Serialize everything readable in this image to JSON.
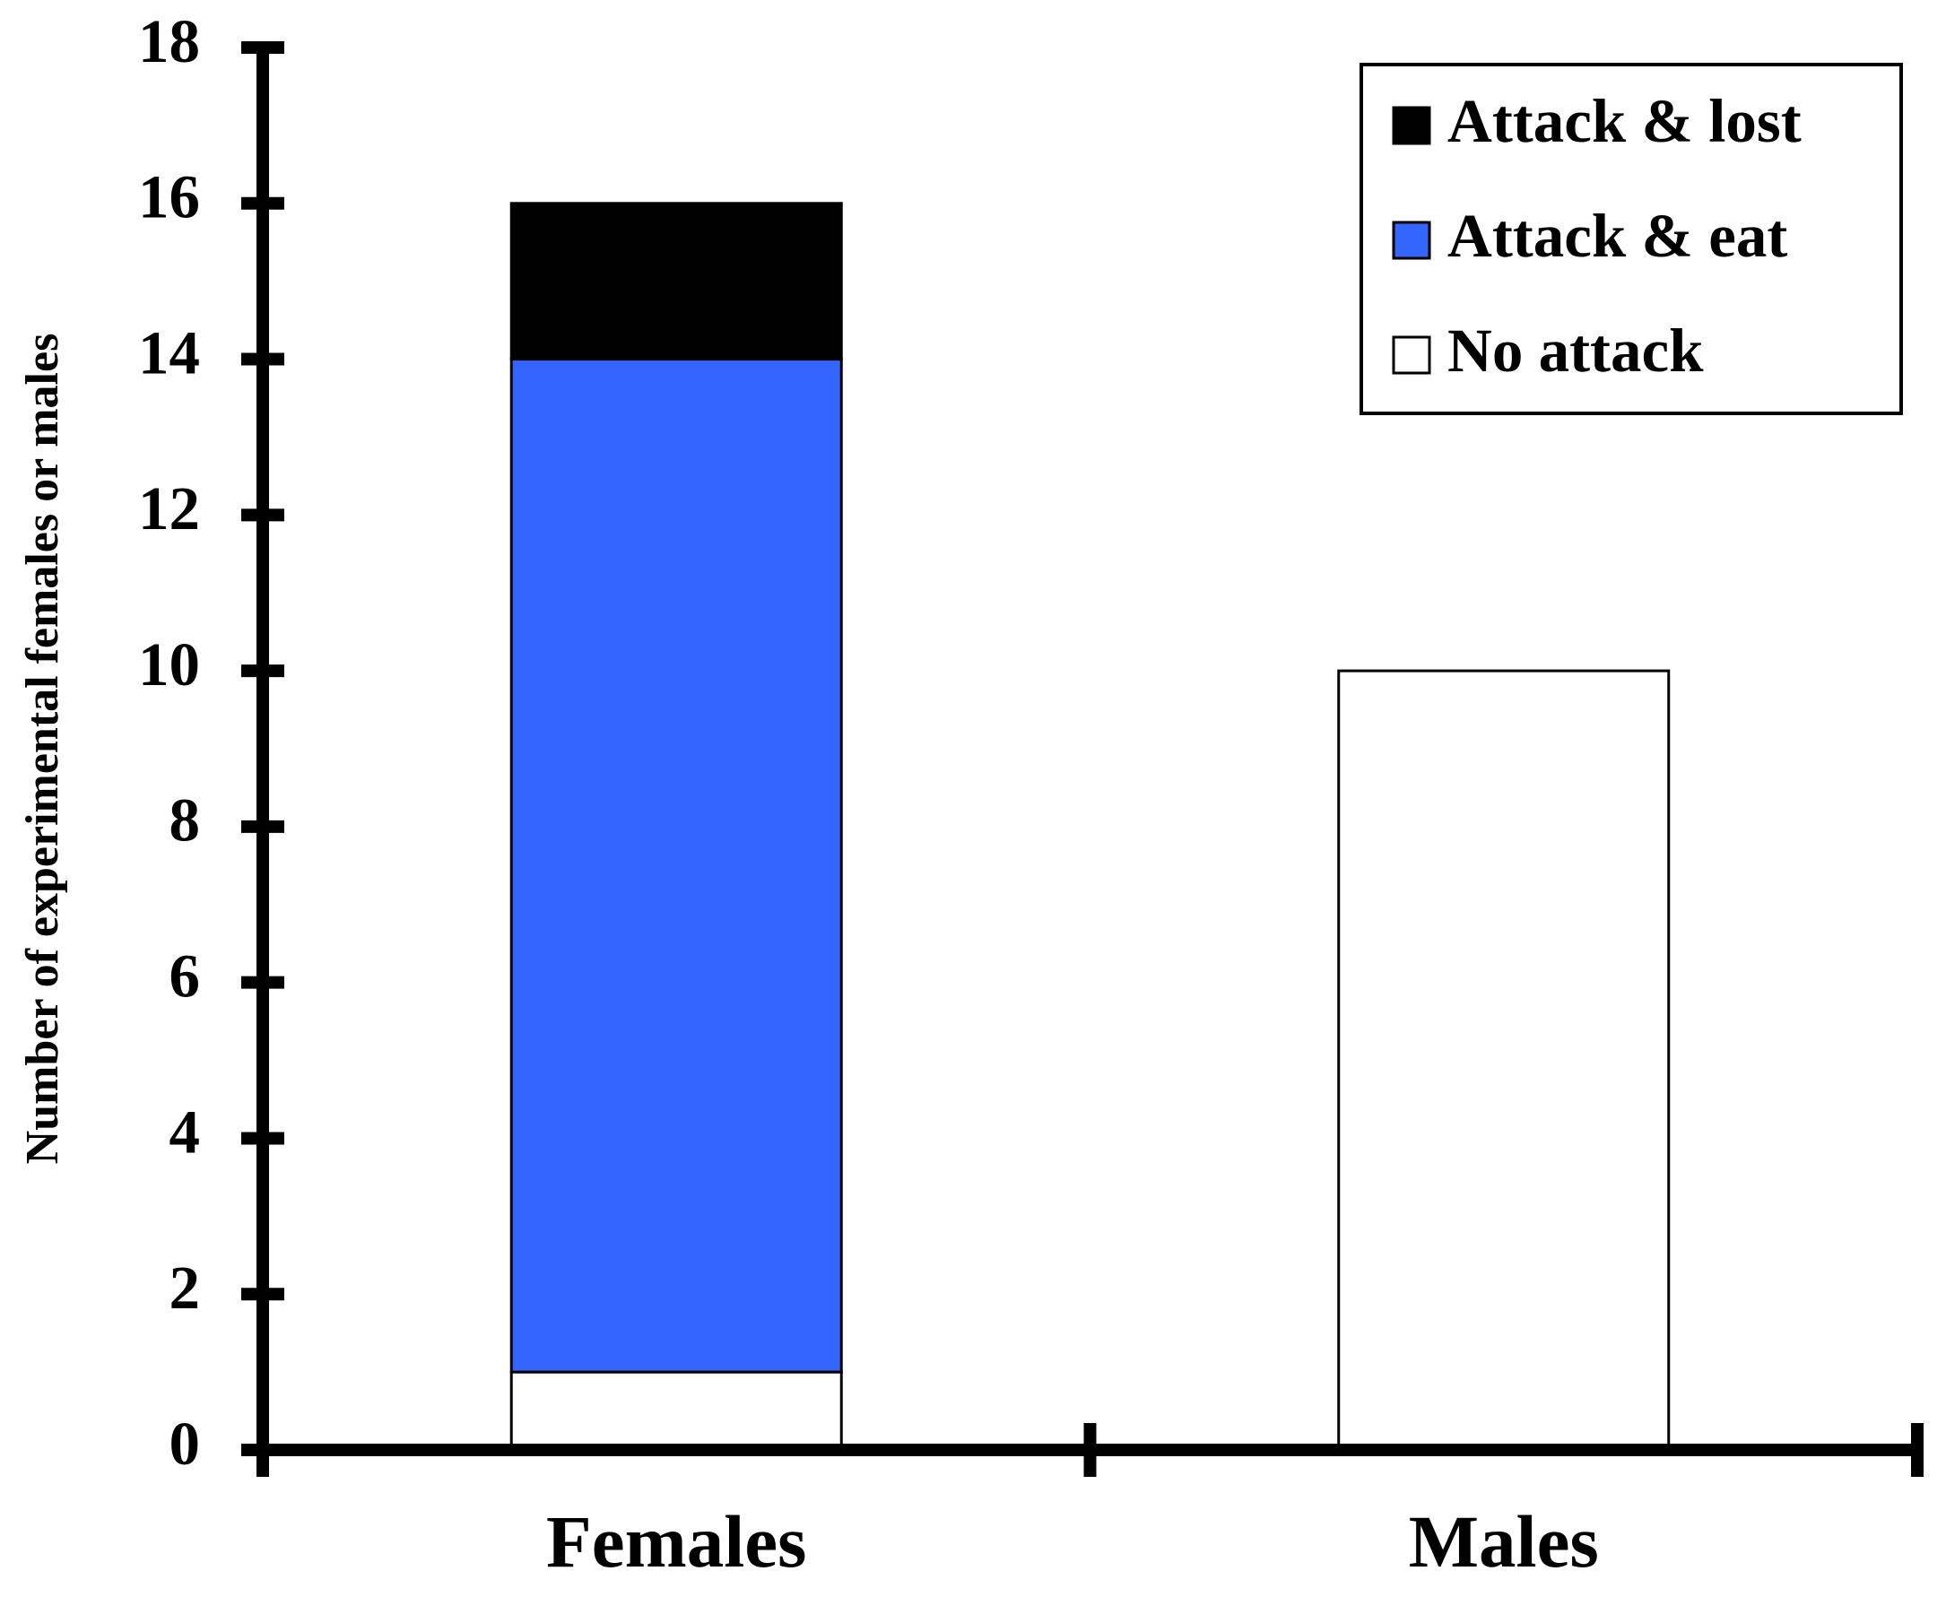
{
  "chart_data": {
    "type": "stacked-bar",
    "y_label": "Number of experimental females or males",
    "categories": [
      "Females",
      "Males"
    ],
    "series": [
      {
        "name": "No attack",
        "color": "#ffffff",
        "values": [
          1,
          10
        ]
      },
      {
        "name": "Attack & eat",
        "color": "#3366ff",
        "values": [
          13,
          0
        ]
      },
      {
        "name": "Attack & lost",
        "color": "#000000",
        "values": [
          2,
          0
        ]
      }
    ],
    "ylim": [
      0,
      18
    ],
    "yticks": [
      0,
      2,
      4,
      6,
      8,
      10,
      12,
      14,
      16,
      18
    ],
    "legend": "upper-right"
  }
}
